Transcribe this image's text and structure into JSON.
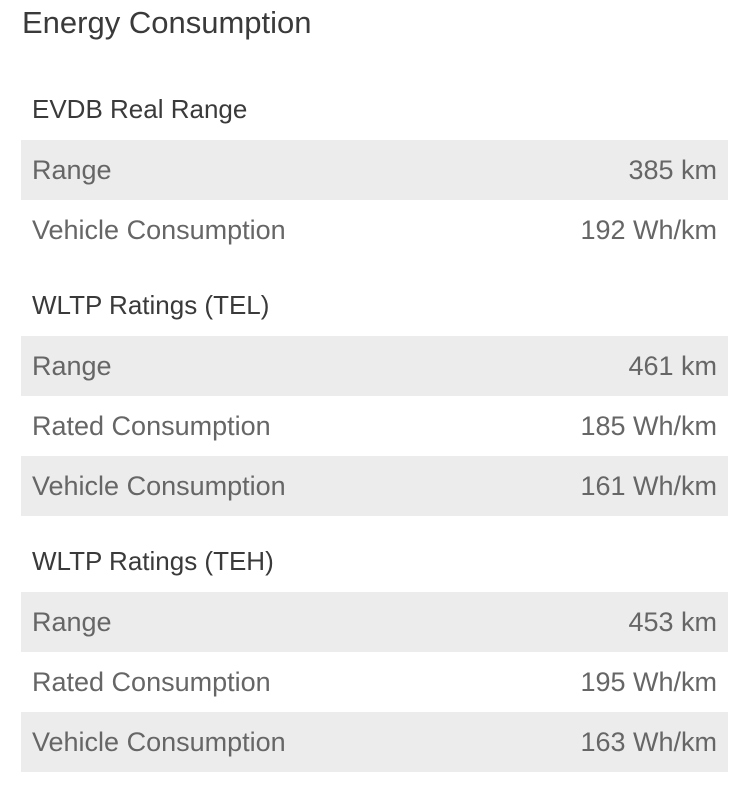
{
  "page_title": "Energy Consumption",
  "sections": [
    {
      "title": "EVDB Real Range",
      "rows": [
        {
          "label": "Range",
          "value": "385 km"
        },
        {
          "label": "Vehicle Consumption",
          "value": "192 Wh/km"
        }
      ]
    },
    {
      "title": "WLTP Ratings (TEL)",
      "rows": [
        {
          "label": "Range",
          "value": "461 km"
        },
        {
          "label": "Rated Consumption",
          "value": "185 Wh/km"
        },
        {
          "label": "Vehicle Consumption",
          "value": "161 Wh/km"
        }
      ]
    },
    {
      "title": "WLTP Ratings (TEH)",
      "rows": [
        {
          "label": "Range",
          "value": "453 km"
        },
        {
          "label": "Rated Consumption",
          "value": "195 Wh/km"
        },
        {
          "label": "Vehicle Consumption",
          "value": "163 Wh/km"
        }
      ]
    }
  ],
  "colors": {
    "row_shade": "#ececec",
    "text_primary": "#3a3a3a",
    "text_secondary": "#666666"
  }
}
